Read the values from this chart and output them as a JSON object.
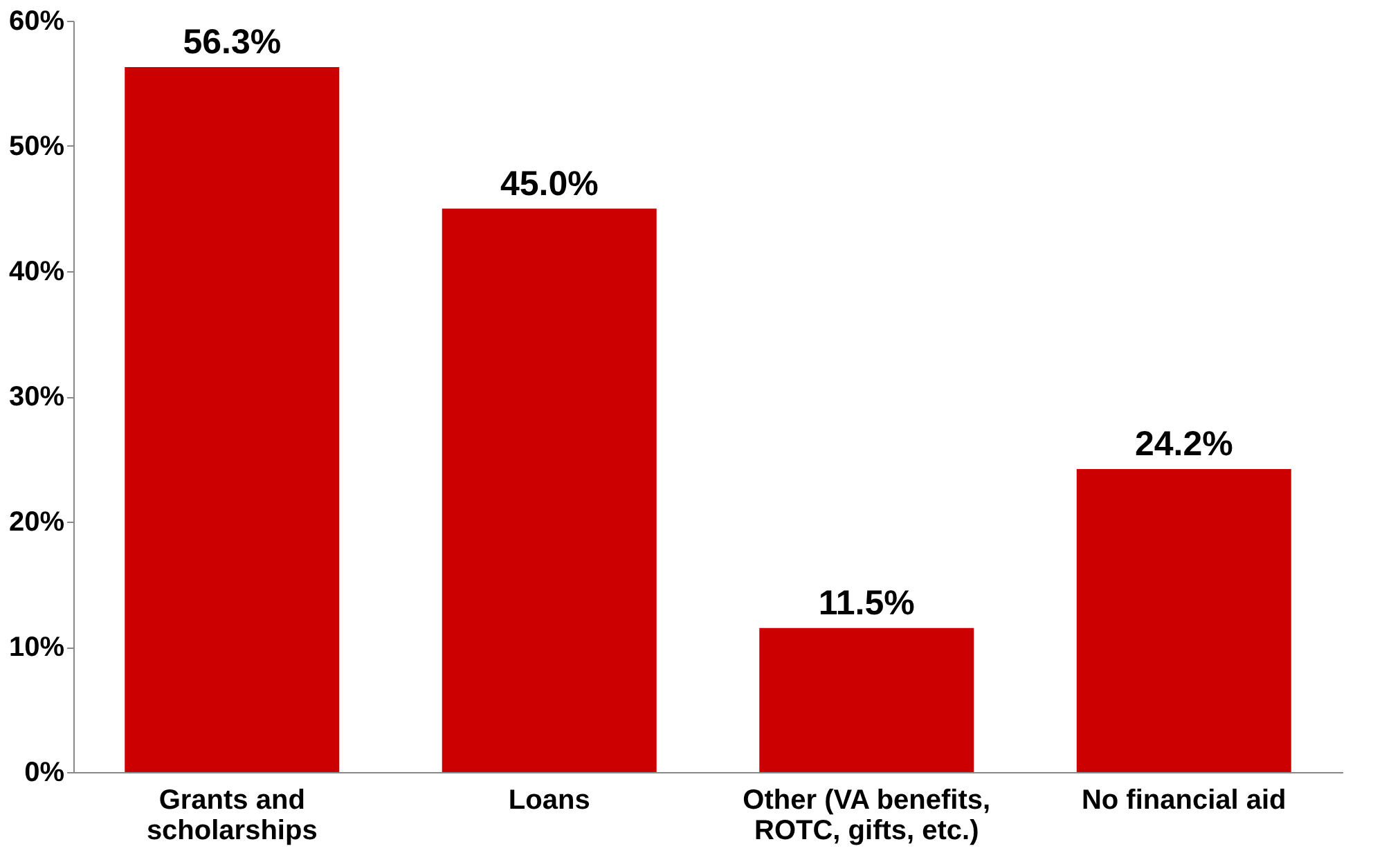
{
  "chart_data": {
    "type": "bar",
    "categories": [
      "Grants and\nscholarships",
      "Loans",
      "Other (VA benefits,\nROTC, gifts, etc.)",
      "No financial aid"
    ],
    "values": [
      56.3,
      45.0,
      11.5,
      24.2
    ],
    "value_labels": [
      "56.3%",
      "45.0%",
      "11.5%",
      "24.2%"
    ],
    "color": "#cc0000",
    "ylim": [
      0,
      60
    ],
    "yticks": [
      {
        "value": 0,
        "label": "0%"
      },
      {
        "value": 10,
        "label": "10%"
      },
      {
        "value": 20,
        "label": "20%"
      },
      {
        "value": 30,
        "label": "30%"
      },
      {
        "value": 40,
        "label": "40%"
      },
      {
        "value": 50,
        "label": "50%"
      },
      {
        "value": 60,
        "label": "60%"
      }
    ],
    "grid": false
  }
}
